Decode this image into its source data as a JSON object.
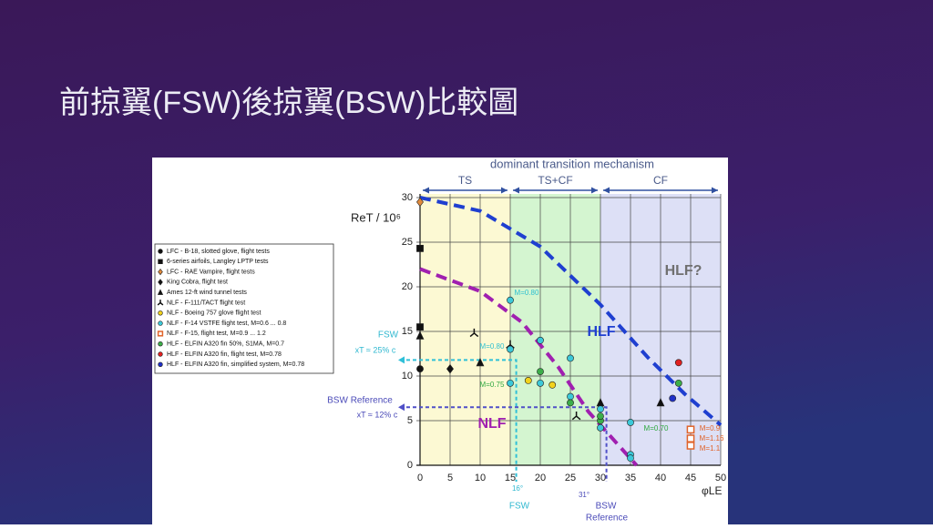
{
  "slide_title": "前掠翼(FSW)後掠翼(BSW)比較圖",
  "chart_data": {
    "type": "scatter",
    "header": "dominant transition mechanism",
    "regions": [
      {
        "label": "TS",
        "range": [
          0,
          15
        ],
        "color": "#fbf8c8"
      },
      {
        "label": "TS+CF",
        "range": [
          15,
          30
        ],
        "color": "#c9f2c4"
      },
      {
        "label": "CF",
        "range": [
          30,
          50
        ],
        "color": "#d5d8f4"
      }
    ],
    "y_label": "ReT / 10⁶",
    "x_label": "φLE",
    "xlim": [
      0,
      50
    ],
    "ylim": [
      0,
      30
    ],
    "xticks": [
      0,
      5,
      10,
      15,
      20,
      25,
      30,
      35,
      40,
      45,
      50
    ],
    "yticks": [
      0,
      5,
      10,
      15,
      20,
      25,
      30
    ],
    "grid": true,
    "series": [
      {
        "name": "LFC - B-18, slotted glove, flight tests",
        "color": "#111111",
        "marker": "circle",
        "x": [
          0
        ],
        "y": [
          10.8
        ]
      },
      {
        "name": "6-series airfoils, Langley LPTP tests",
        "color": "#111111",
        "marker": "square",
        "x": [
          0,
          0
        ],
        "y": [
          24.3,
          15.5
        ]
      },
      {
        "name": "LFC - RAE Vampire, flight tests",
        "color": "#e08a3c",
        "marker": "diamond",
        "x": [
          0
        ],
        "y": [
          29.5
        ]
      },
      {
        "name": "King Cobra, flight test",
        "color": "#111111",
        "marker": "diamond",
        "x": [
          5
        ],
        "y": [
          10.8
        ]
      },
      {
        "name": "Ames 12-ft wind tunnel tests",
        "color": "#111111",
        "marker": "triangle",
        "x": [
          0,
          10,
          30,
          40
        ],
        "y": [
          14.5,
          11.5,
          7,
          7
        ]
      },
      {
        "name": "NLF - F-111/TACT flight test",
        "color": "#111111",
        "marker": "tri",
        "x": [
          9,
          15,
          26
        ],
        "y": [
          14.8,
          13.5,
          5.5
        ]
      },
      {
        "name": "NLF - Boeing 757 glove flight test",
        "color": "#f2d21c",
        "marker": "circle",
        "x": [
          18,
          22
        ],
        "y": [
          9.5,
          9
        ]
      },
      {
        "name": "NLF - F-14 VSTFE flight test, M=0.6 ... 0.8",
        "color": "#3cc8d8",
        "marker": "circle",
        "x": [
          15,
          15,
          15,
          20,
          20,
          25,
          25,
          30,
          30,
          35,
          35,
          35
        ],
        "y": [
          18.5,
          13,
          9.2,
          14,
          9.2,
          12,
          7.7,
          6.3,
          4.2,
          4.8,
          1.2,
          0.8
        ]
      },
      {
        "name": "NLF - F-15, flight test, M=0.9 ... 1.2",
        "color": "#e0632a",
        "marker": "square-open",
        "x": [
          45,
          45,
          45
        ],
        "y": [
          4,
          3,
          2.2
        ]
      },
      {
        "name": "HLF - ELFIN A320 fin 50%, S1MA, M=0.7",
        "color": "#3cae4a",
        "marker": "circle",
        "x": [
          30,
          30,
          43,
          20,
          25
        ],
        "y": [
          5,
          5.5,
          9.2,
          10.5,
          7
        ]
      },
      {
        "name": "HLF - ELFIN A320 fin, flight test, M=0.78",
        "color": "#e02020",
        "marker": "circle",
        "x": [
          43
        ],
        "y": [
          11.5
        ]
      },
      {
        "name": "HLF - ELFIN A320 fin, simplified system, M=0.78",
        "color": "#2030c8",
        "marker": "circle",
        "x": [
          42
        ],
        "y": [
          7.5
        ]
      }
    ],
    "curves": [
      {
        "color": "#1f3fd0",
        "x": [
          0,
          10,
          20,
          30,
          38,
          44,
          50
        ],
        "y": [
          30,
          28.5,
          24.5,
          18,
          12,
          8,
          4.5
        ]
      },
      {
        "color": "#a020b0",
        "x": [
          0,
          10,
          17,
          23,
          28,
          32,
          36
        ],
        "y": [
          22,
          19.5,
          16,
          11,
          6,
          3,
          0
        ]
      }
    ],
    "reference_lines": [
      {
        "color": "#30c0d8",
        "x": 16,
        "y": 11.8
      },
      {
        "color": "#5050c8",
        "x": 31,
        "y": 6.5
      }
    ],
    "annotations": [
      "HLF?",
      "HLF",
      "NLF",
      "FSW",
      "xT ≈ 25% c",
      "BSW Reference",
      "xT ≈ 12% c",
      "16°",
      "FSW",
      "31°",
      "BSW",
      "Reference",
      "M=0.80",
      "M=0.80",
      "M=0.75",
      "M=0.70",
      "M=0.9",
      "M=1.16",
      "M=1.1"
    ]
  }
}
